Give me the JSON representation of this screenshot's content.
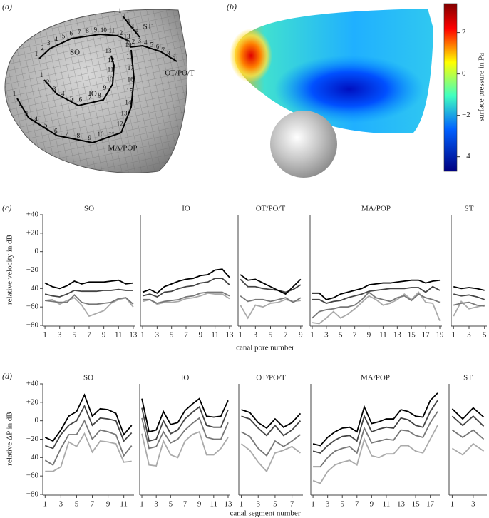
{
  "panel_a": {
    "label": "(a)",
    "canals": [
      {
        "name": "SO",
        "pores": [
          1,
          2,
          3,
          4,
          5,
          6,
          7,
          8,
          9,
          10,
          11,
          12,
          13
        ]
      },
      {
        "name": "IO",
        "pores": [
          1,
          2,
          3,
          4,
          5,
          6,
          7,
          8,
          9,
          10,
          11,
          12,
          13
        ]
      },
      {
        "name": "OT/PO/T",
        "pores": [
          1,
          2,
          3,
          4,
          5,
          6,
          7,
          8,
          9
        ]
      },
      {
        "name": "MA/POP",
        "pores": [
          1,
          2,
          3,
          4,
          5,
          6,
          7,
          8,
          9,
          10,
          11,
          12,
          13,
          14,
          15,
          16,
          17,
          18,
          19
        ]
      },
      {
        "name": "ST",
        "pores": [
          1,
          2,
          3,
          4,
          5
        ]
      }
    ]
  },
  "panel_b": {
    "label": "(b)",
    "colorbar": {
      "label": "surface pressure in Pa",
      "lim": [
        -4.7,
        3.4
      ],
      "ticks": [
        2,
        0,
        {
          "value": -2,
          "label": "−2"
        },
        {
          "value": -4,
          "label": "−4"
        }
      ]
    }
  },
  "panel_c": {
    "label": "(c)",
    "ylabel": "relative velocity in dB",
    "xlabel": "canal pore number"
  },
  "panel_d": {
    "label": "(d)",
    "ylabel": "relative ΔP in dB",
    "xlabel": "canal segment number"
  },
  "chart_data": [
    {
      "type": "line",
      "title": "SO",
      "x": [
        1,
        2,
        3,
        4,
        5,
        6,
        7,
        8,
        9,
        10,
        11,
        12,
        13
      ],
      "xlim": [
        0.7,
        13.3
      ],
      "xticks": [
        1,
        3,
        5,
        7,
        9,
        11,
        13
      ],
      "ylim": [
        -80,
        40
      ],
      "yticks": [
        {
          "value": 40,
          "label": "+40"
        },
        {
          "value": 20,
          "label": "+20"
        },
        0,
        {
          "value": -20,
          "label": "−20"
        },
        {
          "value": -40,
          "label": "−40"
        },
        {
          "value": -60,
          "label": "−60"
        },
        {
          "value": -80,
          "label": "−80"
        }
      ],
      "series": [
        {
          "color": "#000000",
          "values": [
            -34,
            -38,
            -40,
            -37,
            -32,
            -35,
            -33,
            -33,
            -33,
            -32,
            -31,
            -35,
            -34
          ]
        },
        {
          "color": "#444444",
          "values": [
            -46,
            -48,
            -49,
            -46,
            -42,
            -43,
            -43,
            -43,
            -42,
            -42,
            -41,
            -42,
            -42
          ]
        },
        {
          "color": "#777777",
          "values": [
            -53,
            -54,
            -55,
            -55,
            -47,
            -55,
            -57,
            -57,
            -56,
            -55,
            -51,
            -50,
            -57
          ]
        },
        {
          "color": "#aaaaaa",
          "values": [
            -53,
            -52,
            -57,
            -53,
            -50,
            -58,
            -70,
            -67,
            -64,
            -56,
            -52,
            -50,
            -60
          ]
        }
      ]
    },
    {
      "type": "line",
      "title": "IO",
      "x": [
        1,
        2,
        3,
        4,
        5,
        6,
        7,
        8,
        9,
        10,
        11,
        12,
        13
      ],
      "xlim": [
        0.7,
        13.3
      ],
      "xticks": [
        1,
        3,
        5,
        7,
        9,
        11,
        13
      ],
      "ylim": [
        -80,
        40
      ],
      "series": [
        {
          "color": "#000000",
          "values": [
            -44,
            -41,
            -45,
            -38,
            -35,
            -32,
            -30,
            -29,
            -26,
            -25,
            -20,
            -19,
            -28
          ]
        },
        {
          "color": "#444444",
          "values": [
            -48,
            -46,
            -49,
            -44,
            -43,
            -40,
            -38,
            -37,
            -34,
            -33,
            -29,
            -29,
            -36
          ]
        },
        {
          "color": "#777777",
          "values": [
            -52,
            -52,
            -56,
            -54,
            -53,
            -52,
            -49,
            -48,
            -45,
            -44,
            -44,
            -44,
            -48
          ]
        },
        {
          "color": "#aaaaaa",
          "values": [
            -54,
            -52,
            -57,
            -55,
            -55,
            -54,
            -51,
            -50,
            -48,
            -45,
            -46,
            -46,
            -51
          ]
        }
      ]
    },
    {
      "type": "line",
      "title": "OT/PO/T",
      "x": [
        1,
        2,
        3,
        4,
        5,
        6,
        7,
        8,
        9
      ],
      "xlim": [
        0.7,
        9.3
      ],
      "xticks": [
        1,
        3,
        5,
        7,
        9
      ],
      "ylim": [
        -80,
        40
      ],
      "series": [
        {
          "color": "#000000",
          "values": [
            -25,
            -31,
            -30,
            -34,
            -38,
            -42,
            -46,
            -38,
            -30
          ]
        },
        {
          "color": "#444444",
          "values": [
            -30,
            -38,
            -38,
            -40,
            -41,
            -42,
            -44,
            -41,
            -36
          ]
        },
        {
          "color": "#777777",
          "values": [
            -48,
            -54,
            -52,
            -52,
            -54,
            -52,
            -50,
            -55,
            -50
          ]
        },
        {
          "color": "#aaaaaa",
          "values": [
            -58,
            -72,
            -58,
            -60,
            -56,
            -55,
            -52,
            -54,
            -53
          ]
        }
      ]
    },
    {
      "type": "line",
      "title": "MA/POP",
      "x": [
        1,
        2,
        3,
        4,
        5,
        6,
        7,
        8,
        9,
        10,
        11,
        12,
        13,
        14,
        15,
        16,
        17,
        18,
        19
      ],
      "xlim": [
        0.7,
        19.3
      ],
      "xticks": [
        1,
        3,
        5,
        7,
        9,
        11,
        13,
        15,
        17,
        19
      ],
      "ylim": [
        -80,
        40
      ],
      "series": [
        {
          "color": "#000000",
          "values": [
            -45,
            -45,
            -52,
            -50,
            -46,
            -44,
            -42,
            -40,
            -36,
            -35,
            -34,
            -34,
            -33,
            -32,
            -31,
            -31,
            -34,
            -32,
            -31
          ]
        },
        {
          "color": "#444444",
          "values": [
            -52,
            -52,
            -56,
            -54,
            -53,
            -50,
            -48,
            -46,
            -43,
            -42,
            -41,
            -40,
            -40,
            -40,
            -39,
            -39,
            -44,
            -38,
            -42
          ]
        },
        {
          "color": "#777777",
          "values": [
            -72,
            -65,
            -63,
            -62,
            -60,
            -60,
            -58,
            -52,
            -44,
            -50,
            -52,
            -54,
            -50,
            -48,
            -53,
            -46,
            -50,
            -52,
            -55
          ]
        },
        {
          "color": "#aaaaaa",
          "values": [
            -77,
            -78,
            -72,
            -65,
            -72,
            -68,
            -62,
            -55,
            -48,
            -52,
            -58,
            -56,
            -52,
            -46,
            -52,
            -44,
            -55,
            -56,
            -75
          ]
        }
      ]
    },
    {
      "type": "line",
      "title": "ST",
      "x": [
        1,
        2,
        3,
        4,
        5
      ],
      "xlim": [
        0.7,
        5.3
      ],
      "xticks": [
        1,
        3,
        5
      ],
      "ylim": [
        -80,
        40
      ],
      "series": [
        {
          "color": "#000000",
          "values": [
            -38,
            -40,
            -39,
            -40,
            -42
          ]
        },
        {
          "color": "#444444",
          "values": [
            -46,
            -48,
            -47,
            -49,
            -52
          ]
        },
        {
          "color": "#777777",
          "values": [
            -58,
            -56,
            -55,
            -58,
            -59
          ]
        },
        {
          "color": "#aaaaaa",
          "values": [
            -70,
            -54,
            -62,
            -60,
            -58
          ]
        }
      ]
    },
    {
      "type": "line",
      "title": "SO",
      "x": [
        1,
        2,
        3,
        4,
        5,
        6,
        7,
        8,
        9,
        10,
        11,
        12
      ],
      "xlim": [
        0.7,
        12.3
      ],
      "xticks": [
        1,
        3,
        5,
        7,
        9,
        11
      ],
      "ylim": [
        -80,
        40
      ],
      "yticks": [
        {
          "value": 40,
          "label": "+40"
        },
        {
          "value": 20,
          "label": "+20"
        },
        0,
        {
          "value": -20,
          "label": "−20"
        },
        {
          "value": -40,
          "label": "−40"
        },
        {
          "value": -60,
          "label": "−60"
        },
        {
          "value": -80,
          "label": "−80"
        }
      ],
      "series": [
        {
          "color": "#000000",
          "values": [
            -18,
            -22,
            -10,
            5,
            10,
            28,
            5,
            13,
            12,
            8,
            -15,
            -5
          ]
        },
        {
          "color": "#444444",
          "values": [
            -27,
            -30,
            -15,
            -5,
            0,
            16,
            -5,
            3,
            2,
            0,
            -22,
            -13
          ]
        },
        {
          "color": "#777777",
          "values": [
            -43,
            -48,
            -30,
            -15,
            -15,
            0,
            -20,
            -10,
            -12,
            -15,
            -38,
            -27
          ]
        },
        {
          "color": "#aaaaaa",
          "values": [
            -55,
            -55,
            -50,
            -23,
            -28,
            -14,
            -34,
            -22,
            -23,
            -25,
            -45,
            -44
          ]
        }
      ]
    },
    {
      "type": "line",
      "title": "IO",
      "x": [
        1,
        2,
        3,
        4,
        5,
        6,
        7,
        8,
        9,
        10,
        11,
        12,
        13
      ],
      "xlim": [
        0.7,
        13.3
      ],
      "xticks": [
        1,
        3,
        5,
        7,
        9,
        11,
        13
      ],
      "ylim": [
        -80,
        40
      ],
      "series": [
        {
          "color": "#000000",
          "values": [
            24,
            -12,
            -10,
            10,
            -4,
            -2,
            11,
            18,
            24,
            5,
            4,
            5,
            22
          ]
        },
        {
          "color": "#444444",
          "values": [
            14,
            -22,
            -20,
            0,
            -14,
            -10,
            2,
            9,
            15,
            -5,
            -7,
            -7,
            12
          ]
        },
        {
          "color": "#777777",
          "values": [
            3,
            -30,
            -28,
            -12,
            -24,
            -20,
            -10,
            -3,
            3,
            -18,
            -20,
            -20,
            -2
          ]
        },
        {
          "color": "#aaaaaa",
          "values": [
            -14,
            -48,
            -49,
            -22,
            -37,
            -40,
            -22,
            -15,
            -12,
            -37,
            -37,
            -30,
            -18
          ]
        }
      ]
    },
    {
      "type": "line",
      "title": "OT/PO/T",
      "x": [
        1,
        2,
        3,
        4,
        5,
        6,
        7,
        8
      ],
      "xlim": [
        0.7,
        8.3
      ],
      "xticks": [
        1,
        3,
        5,
        7
      ],
      "ylim": [
        -80,
        40
      ],
      "series": [
        {
          "color": "#000000",
          "values": [
            12,
            9,
            -2,
            -8,
            2,
            -7,
            -2,
            8
          ]
        },
        {
          "color": "#444444",
          "values": [
            5,
            2,
            -8,
            -16,
            -5,
            -16,
            -10,
            0
          ]
        },
        {
          "color": "#777777",
          "values": [
            -12,
            -17,
            -30,
            -38,
            -22,
            -28,
            -22,
            -15
          ]
        },
        {
          "color": "#aaaaaa",
          "values": [
            -25,
            -32,
            -45,
            -55,
            -35,
            -32,
            -28,
            -35
          ]
        }
      ]
    },
    {
      "type": "line",
      "title": "MA/POP",
      "x": [
        1,
        2,
        3,
        4,
        5,
        6,
        7,
        8,
        9,
        10,
        11,
        12,
        13,
        14,
        15,
        16,
        17,
        18
      ],
      "xlim": [
        0.7,
        18.3
      ],
      "xticks": [
        1,
        3,
        5,
        7,
        9,
        11,
        13,
        15,
        17
      ],
      "ylim": [
        -80,
        40
      ],
      "series": [
        {
          "color": "#000000",
          "values": [
            -25,
            -27,
            -18,
            -12,
            -8,
            -7,
            -12,
            15,
            -3,
            -1,
            2,
            2,
            12,
            10,
            5,
            4,
            22,
            30
          ]
        },
        {
          "color": "#444444",
          "values": [
            -33,
            -35,
            -27,
            -21,
            -17,
            -16,
            -22,
            5,
            -12,
            -9,
            -7,
            -8,
            3,
            1,
            -5,
            -7,
            10,
            22
          ]
        },
        {
          "color": "#777777",
          "values": [
            -50,
            -50,
            -40,
            -33,
            -30,
            -28,
            -35,
            -8,
            -24,
            -22,
            -20,
            -21,
            -10,
            -11,
            -16,
            -18,
            -2,
            10
          ]
        },
        {
          "color": "#aaaaaa",
          "values": [
            -65,
            -68,
            -55,
            -48,
            -45,
            -43,
            -48,
            -20,
            -38,
            -40,
            -36,
            -36,
            -27,
            -27,
            -33,
            -35,
            -20,
            -5
          ]
        }
      ]
    },
    {
      "type": "line",
      "title": "ST",
      "x": [
        1,
        2,
        3,
        4
      ],
      "xlim": [
        0.7,
        4.3
      ],
      "xticks": [
        1,
        3
      ],
      "ylim": [
        -80,
        40
      ],
      "series": [
        {
          "color": "#000000",
          "values": [
            13,
            2,
            14,
            4
          ]
        },
        {
          "color": "#444444",
          "values": [
            5,
            -5,
            5,
            -6
          ]
        },
        {
          "color": "#777777",
          "values": [
            -10,
            -18,
            -10,
            -20
          ]
        },
        {
          "color": "#aaaaaa",
          "values": [
            -30,
            -37,
            -25,
            -33
          ]
        }
      ]
    }
  ]
}
